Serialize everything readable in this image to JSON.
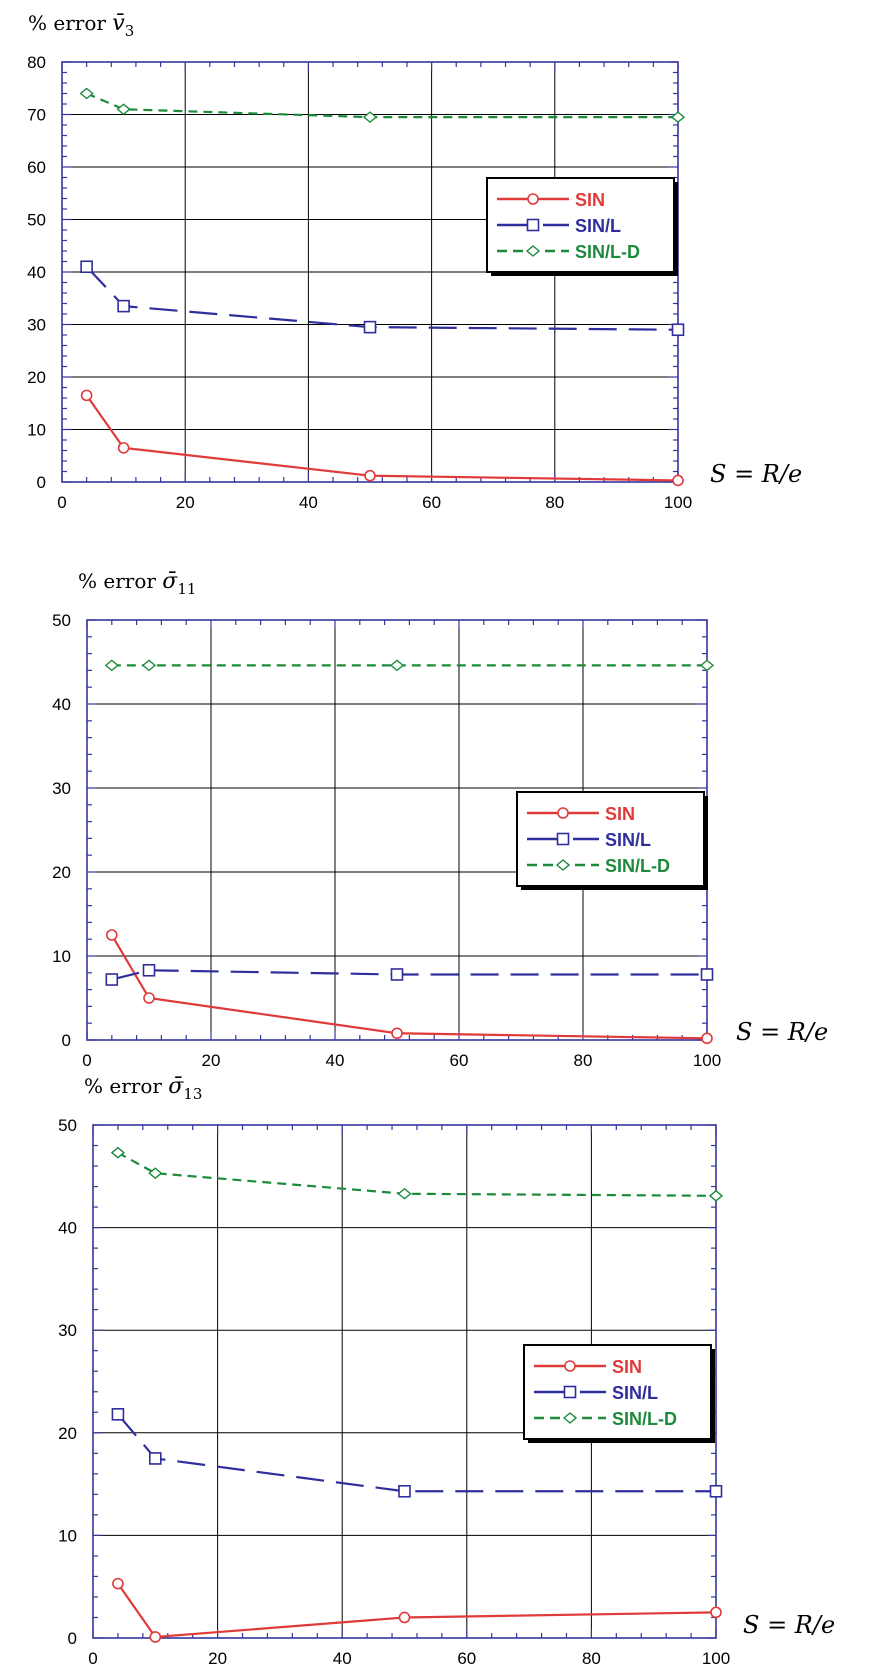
{
  "chart_data": [
    {
      "type": "line",
      "title_prefix": "% error ",
      "title_symbol": "v̄",
      "title_sub": "3",
      "xlabel": "S = R/e",
      "xlim": [
        0,
        100
      ],
      "ylim": [
        0,
        80
      ],
      "x_ticks": [
        "0",
        "20",
        "40",
        "60",
        "80",
        "100"
      ],
      "y_ticks": [
        "0",
        "10",
        "20",
        "30",
        "40",
        "50",
        "60",
        "70",
        "80"
      ],
      "grid": true,
      "legend_position": "center-right",
      "x": [
        4,
        10,
        50,
        100
      ],
      "series": [
        {
          "name": "SIN",
          "color": "#e03a3a",
          "marker": "circle",
          "dash": "solid",
          "values": [
            16.5,
            6.5,
            1.2,
            0.3
          ]
        },
        {
          "name": "SIN/L",
          "color": "#2e2e9c",
          "marker": "square",
          "dash": "long",
          "values": [
            41,
            33.5,
            29.5,
            29
          ]
        },
        {
          "name": "SIN/L-D",
          "color": "#1e8a3c",
          "marker": "diamond",
          "dash": "short",
          "values": [
            74,
            71,
            69.5,
            69.5
          ]
        }
      ]
    },
    {
      "type": "line",
      "title_prefix": "% error ",
      "title_symbol": "σ̄",
      "title_sub": "11",
      "xlabel": "S = R/e",
      "xlim": [
        0,
        100
      ],
      "ylim": [
        0,
        50
      ],
      "x_ticks": [
        "0",
        "20",
        "40",
        "60",
        "80",
        "100"
      ],
      "y_ticks": [
        "0",
        "10",
        "20",
        "30",
        "40",
        "50"
      ],
      "grid": true,
      "legend_position": "center-right",
      "x": [
        4,
        10,
        50,
        100
      ],
      "series": [
        {
          "name": "SIN",
          "color": "#e03a3a",
          "marker": "circle",
          "dash": "solid",
          "values": [
            12.5,
            5,
            0.8,
            0.2
          ]
        },
        {
          "name": "SIN/L",
          "color": "#2e2e9c",
          "marker": "square",
          "dash": "long",
          "values": [
            7.2,
            8.3,
            7.8,
            7.8
          ]
        },
        {
          "name": "SIN/L-D",
          "color": "#1e8a3c",
          "marker": "diamond",
          "dash": "short",
          "values": [
            44.6,
            44.6,
            44.6,
            44.6
          ]
        }
      ]
    },
    {
      "type": "line",
      "title_prefix": "% error ",
      "title_symbol": "σ̄",
      "title_sub": "13",
      "xlabel": "S = R/e",
      "xlim": [
        0,
        100
      ],
      "ylim": [
        0,
        50
      ],
      "x_ticks": [
        "0",
        "20",
        "40",
        "60",
        "80",
        "100"
      ],
      "y_ticks": [
        "0",
        "10",
        "20",
        "30",
        "40",
        "50"
      ],
      "grid": true,
      "legend_position": "center-right",
      "x": [
        4,
        10,
        50,
        100
      ],
      "series": [
        {
          "name": "SIN",
          "color": "#e03a3a",
          "marker": "circle",
          "dash": "solid",
          "values": [
            5.3,
            0.1,
            2.0,
            2.5
          ]
        },
        {
          "name": "SIN/L",
          "color": "#2e2e9c",
          "marker": "square",
          "dash": "long",
          "values": [
            21.8,
            17.5,
            14.3,
            14.3
          ]
        },
        {
          "name": "SIN/L-D",
          "color": "#1e8a3c",
          "marker": "diamond",
          "dash": "short",
          "values": [
            47.3,
            45.3,
            43.3,
            43.1
          ]
        }
      ]
    }
  ]
}
